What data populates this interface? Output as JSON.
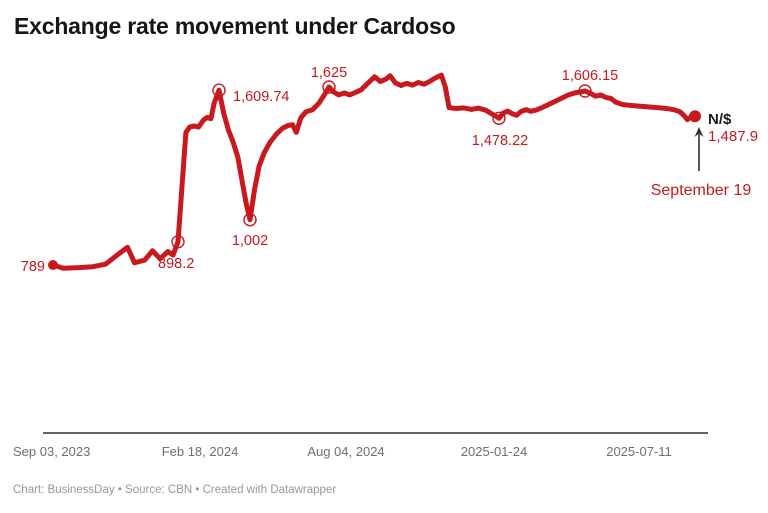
{
  "header": {
    "title": "Exchange rate movement under Cardoso"
  },
  "footer": {
    "credit": "Chart: BusinessDay • Source: CBN • Created with Datawrapper"
  },
  "chart_data": {
    "type": "line",
    "title": "Exchange rate movement under Cardoso",
    "series_name": "N/$ exchange rate",
    "line_color": "#c7191e",
    "axis_line_color": "#4f4f4f",
    "grid": "off",
    "legend": "none",
    "x_tick_labels": [
      "Sep 03, 2023",
      "Feb 18, 2024",
      "Aug 04, 2024",
      "2025-01-24",
      "2025-07-11"
    ],
    "y_range_implied": [
      0,
      1700
    ],
    "annotations": [
      {
        "label": "789",
        "value": 789,
        "f": 0.0,
        "marker": "start-dot"
      },
      {
        "label": "898.2",
        "value": 898.2,
        "f": 0.1947,
        "marker": "open-circle"
      },
      {
        "label": "1,609.74",
        "value": 1609.74,
        "f": 0.2586,
        "marker": "open-circle"
      },
      {
        "label": "1,002",
        "value": 1002,
        "f": 0.3068,
        "marker": "open-circle"
      },
      {
        "label": "1,625",
        "value": 1625,
        "f": 0.4299,
        "marker": "open-circle"
      },
      {
        "label": "1,478.22",
        "value": 1478.22,
        "f": 0.6947,
        "marker": "open-circle"
      },
      {
        "label": "1,606.15",
        "value": 1606.15,
        "f": 0.8287,
        "marker": "open-circle"
      },
      {
        "label": "1,487.9",
        "value": 1487.9,
        "f": 1.0,
        "marker": "end-dot"
      }
    ],
    "end_point": {
      "currency_label": "N/$",
      "value_label": "1,487.9",
      "date_label": "September 19"
    },
    "points": [
      [
        0.0,
        789
      ],
      [
        0.016,
        774
      ],
      [
        0.04,
        777
      ],
      [
        0.062,
        781
      ],
      [
        0.082,
        793
      ],
      [
        0.1,
        836
      ],
      [
        0.116,
        872
      ],
      [
        0.127,
        800
      ],
      [
        0.143,
        812
      ],
      [
        0.155,
        856
      ],
      [
        0.167,
        818
      ],
      [
        0.179,
        852
      ],
      [
        0.187,
        836
      ],
      [
        0.1947,
        898.2
      ],
      [
        0.207,
        1412
      ],
      [
        0.213,
        1437
      ],
      [
        0.22,
        1442
      ],
      [
        0.227,
        1437
      ],
      [
        0.234,
        1468
      ],
      [
        0.24,
        1482
      ],
      [
        0.246,
        1476
      ],
      [
        0.251,
        1548
      ],
      [
        0.2586,
        1609.74
      ],
      [
        0.266,
        1500
      ],
      [
        0.273,
        1425
      ],
      [
        0.281,
        1362
      ],
      [
        0.288,
        1295
      ],
      [
        0.295,
        1175
      ],
      [
        0.301,
        1078
      ],
      [
        0.3068,
        1002
      ],
      [
        0.314,
        1145
      ],
      [
        0.321,
        1253
      ],
      [
        0.329,
        1316
      ],
      [
        0.338,
        1365
      ],
      [
        0.348,
        1404
      ],
      [
        0.358,
        1432
      ],
      [
        0.366,
        1444
      ],
      [
        0.373,
        1448
      ],
      [
        0.379,
        1412
      ],
      [
        0.386,
        1480
      ],
      [
        0.394,
        1508
      ],
      [
        0.404,
        1518
      ],
      [
        0.414,
        1548
      ],
      [
        0.423,
        1590
      ],
      [
        0.4299,
        1625
      ],
      [
        0.437,
        1602
      ],
      [
        0.445,
        1588
      ],
      [
        0.454,
        1597
      ],
      [
        0.462,
        1588
      ],
      [
        0.471,
        1599
      ],
      [
        0.48,
        1612
      ],
      [
        0.49,
        1642
      ],
      [
        0.501,
        1673
      ],
      [
        0.51,
        1651
      ],
      [
        0.518,
        1661
      ],
      [
        0.525,
        1678
      ],
      [
        0.533,
        1645
      ],
      [
        0.542,
        1632
      ],
      [
        0.551,
        1642
      ],
      [
        0.56,
        1634
      ],
      [
        0.569,
        1646
      ],
      [
        0.578,
        1638
      ],
      [
        0.587,
        1652
      ],
      [
        0.596,
        1668
      ],
      [
        0.605,
        1681
      ],
      [
        0.611,
        1625
      ],
      [
        0.617,
        1528
      ],
      [
        0.628,
        1524
      ],
      [
        0.64,
        1527
      ],
      [
        0.652,
        1520
      ],
      [
        0.663,
        1526
      ],
      [
        0.674,
        1516
      ],
      [
        0.683,
        1500
      ],
      [
        0.69,
        1488
      ],
      [
        0.6947,
        1478.22
      ],
      [
        0.701,
        1502
      ],
      [
        0.708,
        1512
      ],
      [
        0.715,
        1500
      ],
      [
        0.722,
        1492
      ],
      [
        0.729,
        1510
      ],
      [
        0.737,
        1519
      ],
      [
        0.744,
        1511
      ],
      [
        0.752,
        1516
      ],
      [
        0.76,
        1526
      ],
      [
        0.77,
        1540
      ],
      [
        0.781,
        1556
      ],
      [
        0.792,
        1572
      ],
      [
        0.803,
        1588
      ],
      [
        0.814,
        1598
      ],
      [
        0.822,
        1602
      ],
      [
        0.8287,
        1606.15
      ],
      [
        0.837,
        1596
      ],
      [
        0.845,
        1582
      ],
      [
        0.853,
        1588
      ],
      [
        0.861,
        1576
      ],
      [
        0.869,
        1571
      ],
      [
        0.877,
        1553
      ],
      [
        0.887,
        1543
      ],
      [
        0.898,
        1539
      ],
      [
        0.91,
        1536
      ],
      [
        0.922,
        1533
      ],
      [
        0.934,
        1530
      ],
      [
        0.946,
        1527
      ],
      [
        0.958,
        1523
      ],
      [
        0.968,
        1518
      ],
      [
        0.977,
        1508
      ],
      [
        0.983,
        1490
      ],
      [
        0.988,
        1472
      ],
      [
        0.993,
        1483
      ],
      [
        1.0,
        1487.9
      ]
    ]
  }
}
